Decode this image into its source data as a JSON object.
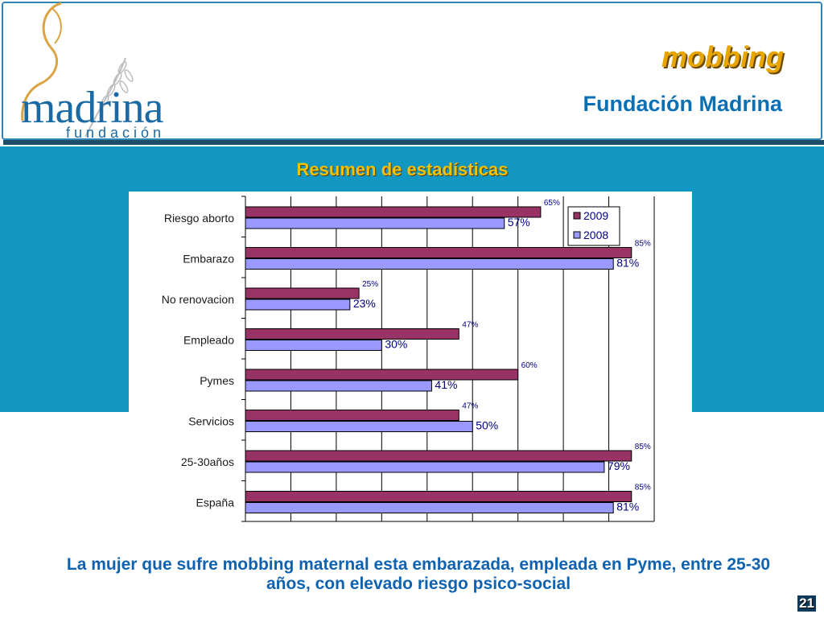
{
  "slide": {
    "title": "mobbing",
    "subtitle": "Fundación Madrina",
    "logo_text": "madrina",
    "logo_subtext": "fundación",
    "chart_heading": "Resumen de estadísticas",
    "conclusion": "La mujer que sufre mobbing maternal esta embarazada, empleada en Pyme, entre 25-30 años, con elevado riesgo psico-social",
    "page_number": "21"
  },
  "colors": {
    "series_2009": "#993366",
    "series_2008": "#9999ff",
    "band": "#1296c2",
    "title": "#e8a500",
    "subtitle": "#0b6fb3"
  },
  "chart_data": {
    "type": "bar",
    "orientation": "horizontal",
    "title": "Resumen de estadísticas",
    "categories": [
      "Riesgo aborto",
      "Embarazo",
      "No renovacion",
      "Empleado",
      "Pymes",
      "Servicios",
      "25-30años",
      "España"
    ],
    "series": [
      {
        "name": "2009",
        "values": [
          65,
          85,
          25,
          47,
          60,
          47,
          85,
          85
        ],
        "labels": [
          "65%",
          "85%",
          "25%",
          "47%",
          "60%",
          "47%",
          "85%",
          "85%"
        ]
      },
      {
        "name": "2008",
        "values": [
          57,
          81,
          23,
          30,
          41,
          50,
          79,
          81
        ],
        "labels": [
          "57%",
          "81%",
          "23%",
          "30%",
          "41%",
          "50%",
          "79%",
          "81%"
        ]
      }
    ],
    "xlim": [
      0,
      90
    ],
    "grid": true,
    "legend": "top-right"
  }
}
